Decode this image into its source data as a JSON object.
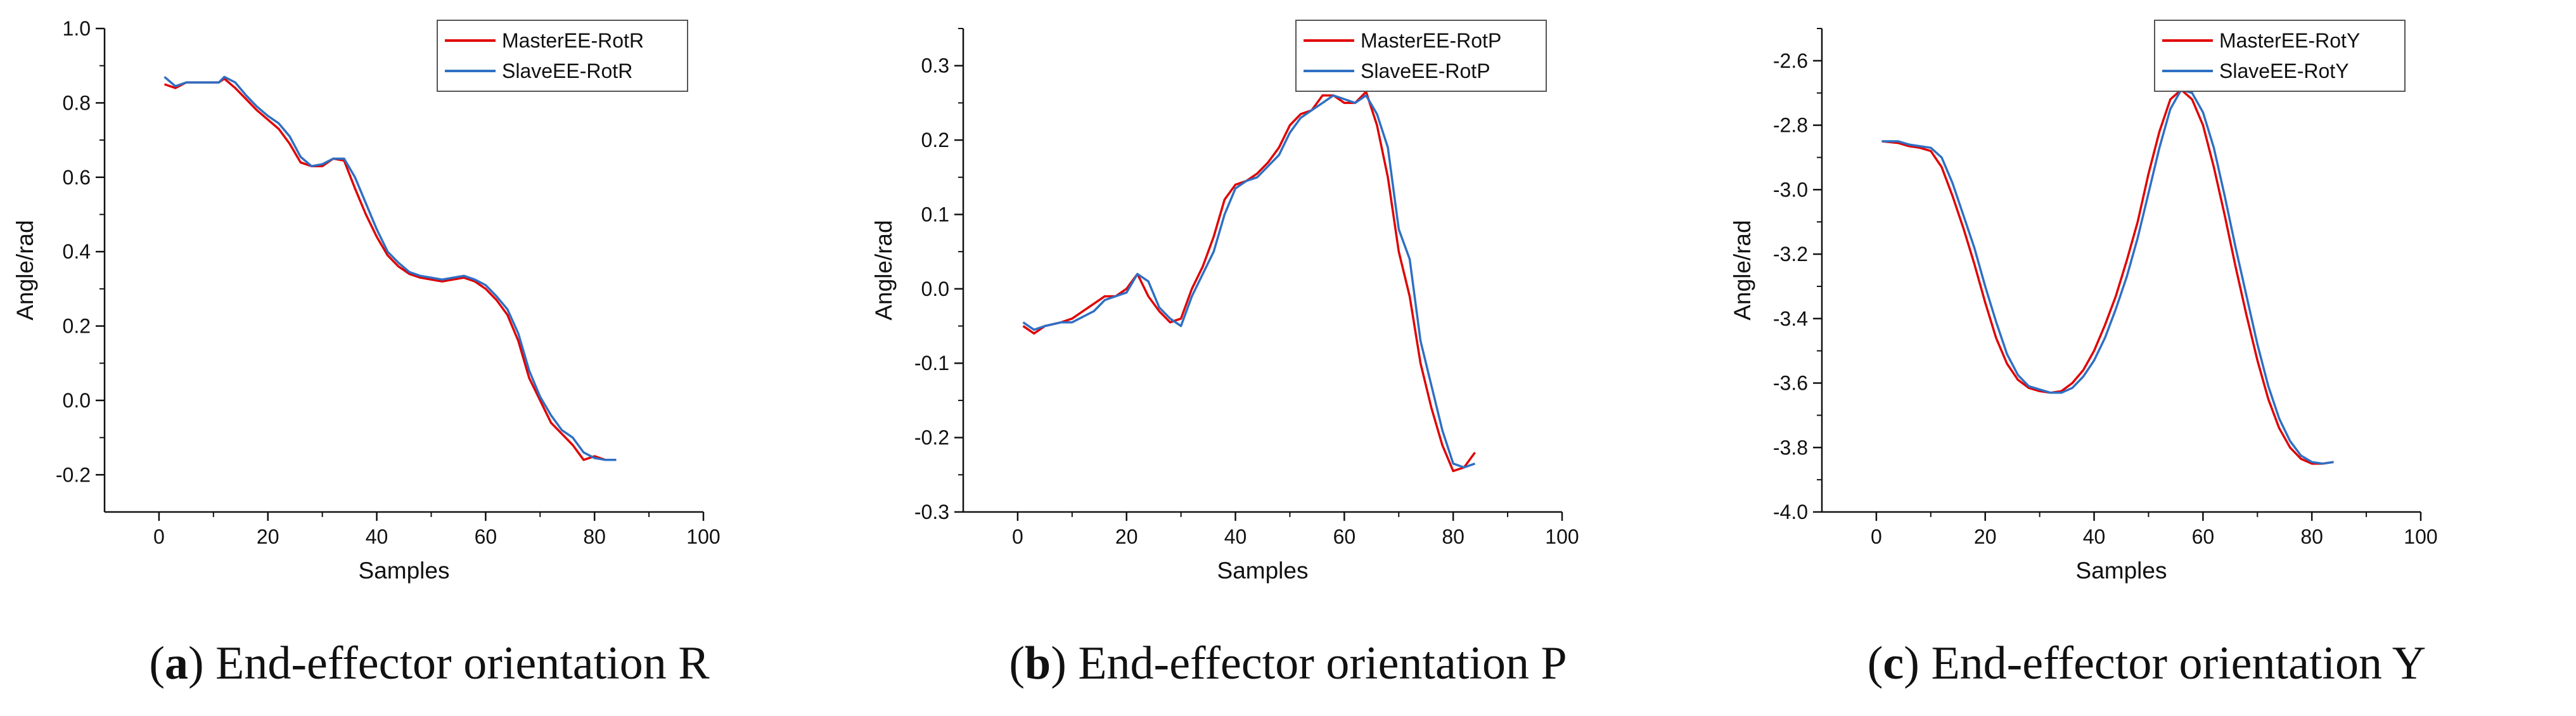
{
  "colors": {
    "master": "#e00000",
    "slave": "#2f6fc3",
    "axis": "#111111",
    "frame": "#555555"
  },
  "chart_data": [
    {
      "type": "line",
      "title": "",
      "xlabel": "Samples",
      "ylabel": "Angle/rad",
      "xlim": [
        -10,
        100
      ],
      "ylim": [
        -0.3,
        1.0
      ],
      "xticks": [
        0,
        20,
        40,
        60,
        80,
        100
      ],
      "xtick_labels": [
        "0",
        "20",
        "40",
        "60",
        "80",
        "100"
      ],
      "yticks": [
        -0.2,
        0.0,
        0.2,
        0.4,
        0.6,
        0.8,
        1.0
      ],
      "ytick_labels": [
        "-0.2",
        "0.0",
        "0.2",
        "0.4",
        "0.6",
        "0.8",
        "1.0"
      ],
      "legend_position": "top-right",
      "series": [
        {
          "name": "MasterEE-RotR",
          "x": [
            1,
            3,
            5,
            8,
            11,
            12,
            14,
            16,
            18,
            20,
            22,
            24,
            26,
            28,
            30,
            32,
            34,
            36,
            38,
            40,
            42,
            44,
            46,
            48,
            50,
            52,
            54,
            56,
            58,
            60,
            62,
            64,
            66,
            68,
            70,
            72,
            74,
            76,
            78,
            80,
            82,
            84
          ],
          "values": [
            0.85,
            0.84,
            0.855,
            0.855,
            0.855,
            0.865,
            0.84,
            0.81,
            0.78,
            0.755,
            0.73,
            0.69,
            0.64,
            0.63,
            0.63,
            0.65,
            0.645,
            0.57,
            0.5,
            0.44,
            0.39,
            0.36,
            0.34,
            0.33,
            0.325,
            0.32,
            0.325,
            0.33,
            0.32,
            0.3,
            0.27,
            0.23,
            0.16,
            0.06,
            0.0,
            -0.06,
            -0.09,
            -0.12,
            -0.16,
            -0.15,
            -0.16,
            -0.16
          ]
        },
        {
          "name": "SlaveEE-RotR",
          "x": [
            1,
            3,
            5,
            8,
            11,
            12,
            14,
            16,
            18,
            20,
            22,
            24,
            26,
            28,
            30,
            32,
            34,
            36,
            38,
            40,
            42,
            44,
            46,
            48,
            50,
            52,
            54,
            56,
            58,
            60,
            62,
            64,
            66,
            68,
            70,
            72,
            74,
            76,
            78,
            80,
            82,
            84
          ],
          "values": [
            0.87,
            0.845,
            0.855,
            0.855,
            0.855,
            0.87,
            0.855,
            0.82,
            0.79,
            0.765,
            0.745,
            0.71,
            0.655,
            0.63,
            0.635,
            0.65,
            0.65,
            0.6,
            0.53,
            0.46,
            0.4,
            0.37,
            0.345,
            0.335,
            0.33,
            0.325,
            0.33,
            0.335,
            0.325,
            0.31,
            0.28,
            0.245,
            0.18,
            0.08,
            0.01,
            -0.04,
            -0.08,
            -0.1,
            -0.14,
            -0.155,
            -0.16,
            -0.16
          ]
        }
      ]
    },
    {
      "type": "line",
      "title": "",
      "xlabel": "Samples",
      "ylabel": "Angle/rad",
      "xlim": [
        -10,
        100
      ],
      "ylim": [
        -0.3,
        0.35
      ],
      "xticks": [
        0,
        20,
        40,
        60,
        80,
        100
      ],
      "xtick_labels": [
        "0",
        "20",
        "40",
        "60",
        "80",
        "100"
      ],
      "yticks": [
        -0.3,
        -0.2,
        -0.1,
        0.0,
        0.1,
        0.2,
        0.3
      ],
      "ytick_labels": [
        "-0.3",
        "-0.2",
        "-0.1",
        "0.0",
        "0.1",
        "0.2",
        "0.3"
      ],
      "legend_position": "top-right",
      "series": [
        {
          "name": "MasterEE-RotP",
          "x": [
            1,
            3,
            5,
            8,
            10,
            14,
            16,
            18,
            20,
            22,
            24,
            26,
            28,
            30,
            32,
            34,
            36,
            38,
            40,
            42,
            44,
            46,
            48,
            50,
            52,
            54,
            56,
            58,
            60,
            62,
            64,
            66,
            68,
            70,
            72,
            74,
            76,
            78,
            80,
            82,
            84
          ],
          "values": [
            -0.05,
            -0.06,
            -0.05,
            -0.045,
            -0.04,
            -0.02,
            -0.01,
            -0.01,
            0.0,
            0.02,
            -0.01,
            -0.03,
            -0.045,
            -0.04,
            0.0,
            0.03,
            0.07,
            0.12,
            0.14,
            0.145,
            0.155,
            0.17,
            0.19,
            0.22,
            0.235,
            0.24,
            0.26,
            0.26,
            0.25,
            0.25,
            0.265,
            0.22,
            0.15,
            0.05,
            -0.01,
            -0.1,
            -0.16,
            -0.21,
            -0.245,
            -0.24,
            -0.22
          ]
        },
        {
          "name": "SlaveEE-RotP",
          "x": [
            1,
            3,
            5,
            8,
            10,
            14,
            16,
            18,
            20,
            22,
            24,
            26,
            28,
            30,
            32,
            34,
            36,
            38,
            40,
            42,
            44,
            46,
            48,
            50,
            52,
            54,
            56,
            58,
            60,
            62,
            64,
            66,
            68,
            70,
            72,
            74,
            76,
            78,
            80,
            82,
            84
          ],
          "values": [
            -0.045,
            -0.055,
            -0.05,
            -0.045,
            -0.045,
            -0.03,
            -0.015,
            -0.01,
            -0.005,
            0.02,
            0.01,
            -0.025,
            -0.04,
            -0.05,
            -0.01,
            0.02,
            0.05,
            0.1,
            0.135,
            0.145,
            0.15,
            0.165,
            0.18,
            0.21,
            0.23,
            0.24,
            0.25,
            0.26,
            0.255,
            0.25,
            0.26,
            0.235,
            0.19,
            0.08,
            0.04,
            -0.07,
            -0.13,
            -0.19,
            -0.235,
            -0.24,
            -0.235
          ]
        }
      ]
    },
    {
      "type": "line",
      "title": "",
      "xlabel": "Samples",
      "ylabel": "Angle/rad",
      "xlim": [
        -10,
        100
      ],
      "ylim": [
        -4.0,
        -2.5
      ],
      "xticks": [
        0,
        20,
        40,
        60,
        80,
        100
      ],
      "xtick_labels": [
        "0",
        "20",
        "40",
        "60",
        "80",
        "100"
      ],
      "yticks": [
        -4.0,
        -3.8,
        -3.6,
        -3.4,
        -3.2,
        -3.0,
        -2.8,
        -2.6
      ],
      "ytick_labels": [
        "-4.0",
        "-3.8",
        "-3.6",
        "-3.4",
        "-3.2",
        "-3.0",
        "-2.8",
        "-2.6"
      ],
      "legend_position": "top-right",
      "series": [
        {
          "name": "MasterEE-RotY",
          "x": [
            1,
            4,
            6,
            8,
            10,
            12,
            14,
            16,
            18,
            20,
            22,
            24,
            26,
            28,
            30,
            32,
            34,
            36,
            38,
            40,
            42,
            44,
            46,
            48,
            50,
            52,
            54,
            56,
            58,
            60,
            62,
            64,
            66,
            68,
            70,
            72,
            74,
            76,
            78,
            80,
            82,
            84
          ],
          "values": [
            -2.85,
            -2.855,
            -2.865,
            -2.87,
            -2.88,
            -2.93,
            -3.02,
            -3.12,
            -3.23,
            -3.35,
            -3.46,
            -3.54,
            -3.59,
            -3.615,
            -3.625,
            -3.63,
            -3.625,
            -3.6,
            -3.56,
            -3.5,
            -3.42,
            -3.33,
            -3.22,
            -3.1,
            -2.95,
            -2.82,
            -2.72,
            -2.69,
            -2.72,
            -2.8,
            -2.93,
            -3.08,
            -3.24,
            -3.39,
            -3.53,
            -3.65,
            -3.74,
            -3.8,
            -3.835,
            -3.85,
            -3.85,
            -3.845
          ]
        },
        {
          "name": "SlaveEE-RotY",
          "x": [
            1,
            4,
            6,
            8,
            10,
            12,
            14,
            16,
            18,
            20,
            22,
            24,
            26,
            28,
            30,
            32,
            34,
            36,
            38,
            40,
            42,
            44,
            46,
            48,
            50,
            52,
            54,
            56,
            58,
            60,
            62,
            64,
            66,
            68,
            70,
            72,
            74,
            76,
            78,
            80,
            82,
            84
          ],
          "values": [
            -2.85,
            -2.85,
            -2.86,
            -2.865,
            -2.87,
            -2.9,
            -2.98,
            -3.08,
            -3.18,
            -3.3,
            -3.41,
            -3.51,
            -3.575,
            -3.61,
            -3.62,
            -3.63,
            -3.63,
            -3.615,
            -3.58,
            -3.53,
            -3.46,
            -3.37,
            -3.27,
            -3.15,
            -3.01,
            -2.87,
            -2.75,
            -2.69,
            -2.7,
            -2.76,
            -2.87,
            -3.02,
            -3.18,
            -3.33,
            -3.48,
            -3.61,
            -3.71,
            -3.78,
            -3.825,
            -3.845,
            -3.85,
            -3.845
          ]
        }
      ]
    }
  ],
  "captions": [
    {
      "letter": "a",
      "text": "End-effector orientation R"
    },
    {
      "letter": "b",
      "text": "End-effector orientation P"
    },
    {
      "letter": "c",
      "text": "End-effector orientation Y"
    }
  ]
}
